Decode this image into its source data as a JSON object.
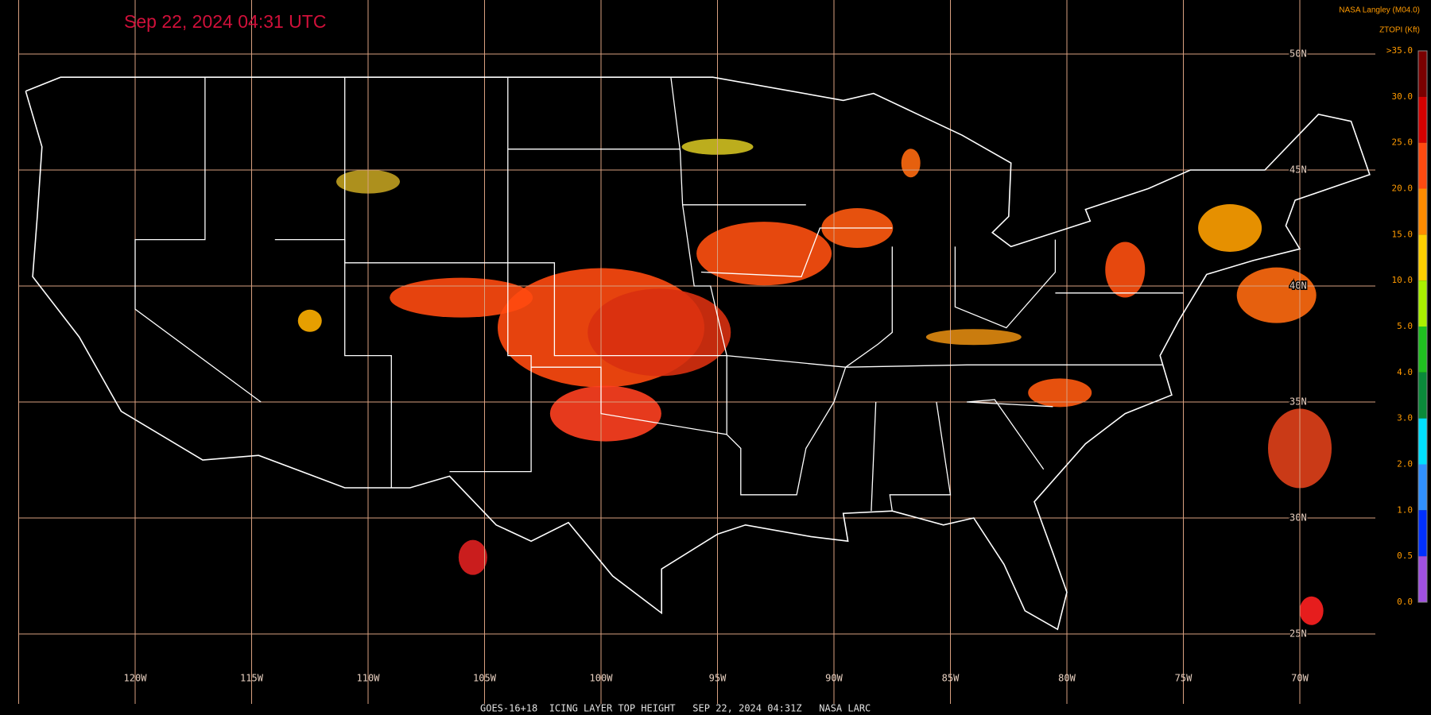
{
  "header": {
    "timestamp": "Sep 22, 2024 04:31 UTC",
    "source": "NASA Langley (M04.0)",
    "product": "ZTOPI (Kft)"
  },
  "colorbar": {
    "labels": [
      ">35.0",
      "30.0",
      "25.0",
      "20.0",
      "15.0",
      "10.0",
      "5.0",
      "4.0",
      "3.0",
      "2.0",
      "1.0",
      "0.5",
      "0.0"
    ],
    "colors": [
      "#7a0000",
      "#d40000",
      "#ff4a10",
      "#ff8c00",
      "#ffd000",
      "#aaf000",
      "#20c020",
      "#0a8a3a",
      "#00e0ff",
      "#3090ff",
      "#0030ff",
      "#a050e0"
    ]
  },
  "latitudes": [
    "50N",
    "45N",
    "40N",
    "35N",
    "30N",
    "25N"
  ],
  "longitudes": [
    "120W",
    "115W",
    "110W",
    "105W",
    "100W",
    "95W",
    "90W",
    "85W",
    "80W",
    "75W",
    "70W"
  ],
  "footer": "GOES-16+18  ICING LAYER TOP HEIGHT   SEP 22, 2024 04:31Z   NASA LARC"
}
